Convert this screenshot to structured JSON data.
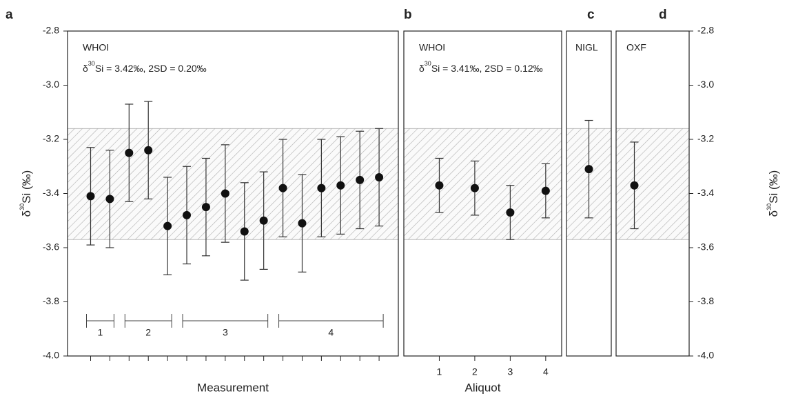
{
  "chart_data": [
    {
      "type": "scatter",
      "panel": "a",
      "title": "WHOI",
      "annotation_parts": [
        "δ",
        "30",
        "Si = 3.42‰, 2SD = 0.20‰"
      ],
      "x": [
        1,
        2,
        3,
        4,
        5,
        6,
        7,
        8,
        9,
        10,
        11,
        12,
        13,
        14,
        15,
        16
      ],
      "xlim": [
        -0.2,
        17
      ],
      "values": [
        -3.41,
        -3.42,
        -3.25,
        -3.24,
        -3.52,
        -3.48,
        -3.45,
        -3.4,
        -3.54,
        -3.5,
        -3.38,
        -3.51,
        -3.38,
        -3.37,
        -3.35,
        -3.34
      ],
      "errors": [
        0.18,
        0.18,
        0.18,
        0.18,
        0.18,
        0.18,
        0.18,
        0.18,
        0.18,
        0.18,
        0.18,
        0.18,
        0.18,
        0.18,
        0.18,
        0.18
      ],
      "groups": [
        {
          "label": "1",
          "size": 2
        },
        {
          "label": "2",
          "size": 3
        },
        {
          "label": "3",
          "size": 5
        },
        {
          "label": "4",
          "size": 6
        }
      ],
      "xlabel": "Measurement",
      "ylim": [
        -4.0,
        -2.8
      ],
      "yticks": [
        -2.8,
        {
          "value": -3.0,
          "label": "-3.0"
        },
        -3.2,
        -3.4,
        -3.6,
        -3.8,
        {
          "value": -4.0,
          "label": "-4.0"
        }
      ],
      "y_axis_side": "left",
      "ylabel_parts": [
        "δ",
        "30",
        "Si (‰)"
      ],
      "band": [
        -3.57,
        -3.16
      ],
      "color": "#111111",
      "band_color": "#aaaaaa"
    },
    {
      "type": "scatter",
      "panel": "b",
      "title": "WHOI",
      "annotation_parts": [
        "δ",
        "30",
        "Si = 3.41‰, 2SD = 0.12‰"
      ],
      "x": [
        1,
        2,
        3,
        4
      ],
      "xlim": [
        0,
        4.45
      ],
      "xticks": [
        1,
        2,
        3,
        4
      ],
      "values": [
        -3.37,
        -3.38,
        -3.47,
        -3.39
      ],
      "errors": [
        0.1,
        0.1,
        0.1,
        0.1
      ],
      "xlabel": "Aliquot",
      "ylim": [
        -4.0,
        -2.8
      ],
      "color": "#111111"
    },
    {
      "type": "scatter",
      "panel": "c",
      "title": "NIGL",
      "values": [
        -3.31
      ],
      "errors": [
        0.18
      ],
      "ylim": [
        -4.0,
        -2.8
      ],
      "color": "#111111"
    },
    {
      "type": "scatter",
      "panel": "d",
      "title": "OXF",
      "values": [
        -3.37
      ],
      "errors": [
        0.16
      ],
      "ylim": [
        -4.0,
        -2.8
      ],
      "yticks": [
        -2.8,
        {
          "value": -3.0,
          "label": "-3.0"
        },
        -3.2,
        -3.4,
        -3.6,
        -3.8,
        {
          "value": -4.0,
          "label": "-4.0"
        }
      ],
      "y_axis_side": "right",
      "ylabel_parts": [
        "δ",
        "30",
        "Si (‰)"
      ],
      "color": "#111111"
    }
  ]
}
